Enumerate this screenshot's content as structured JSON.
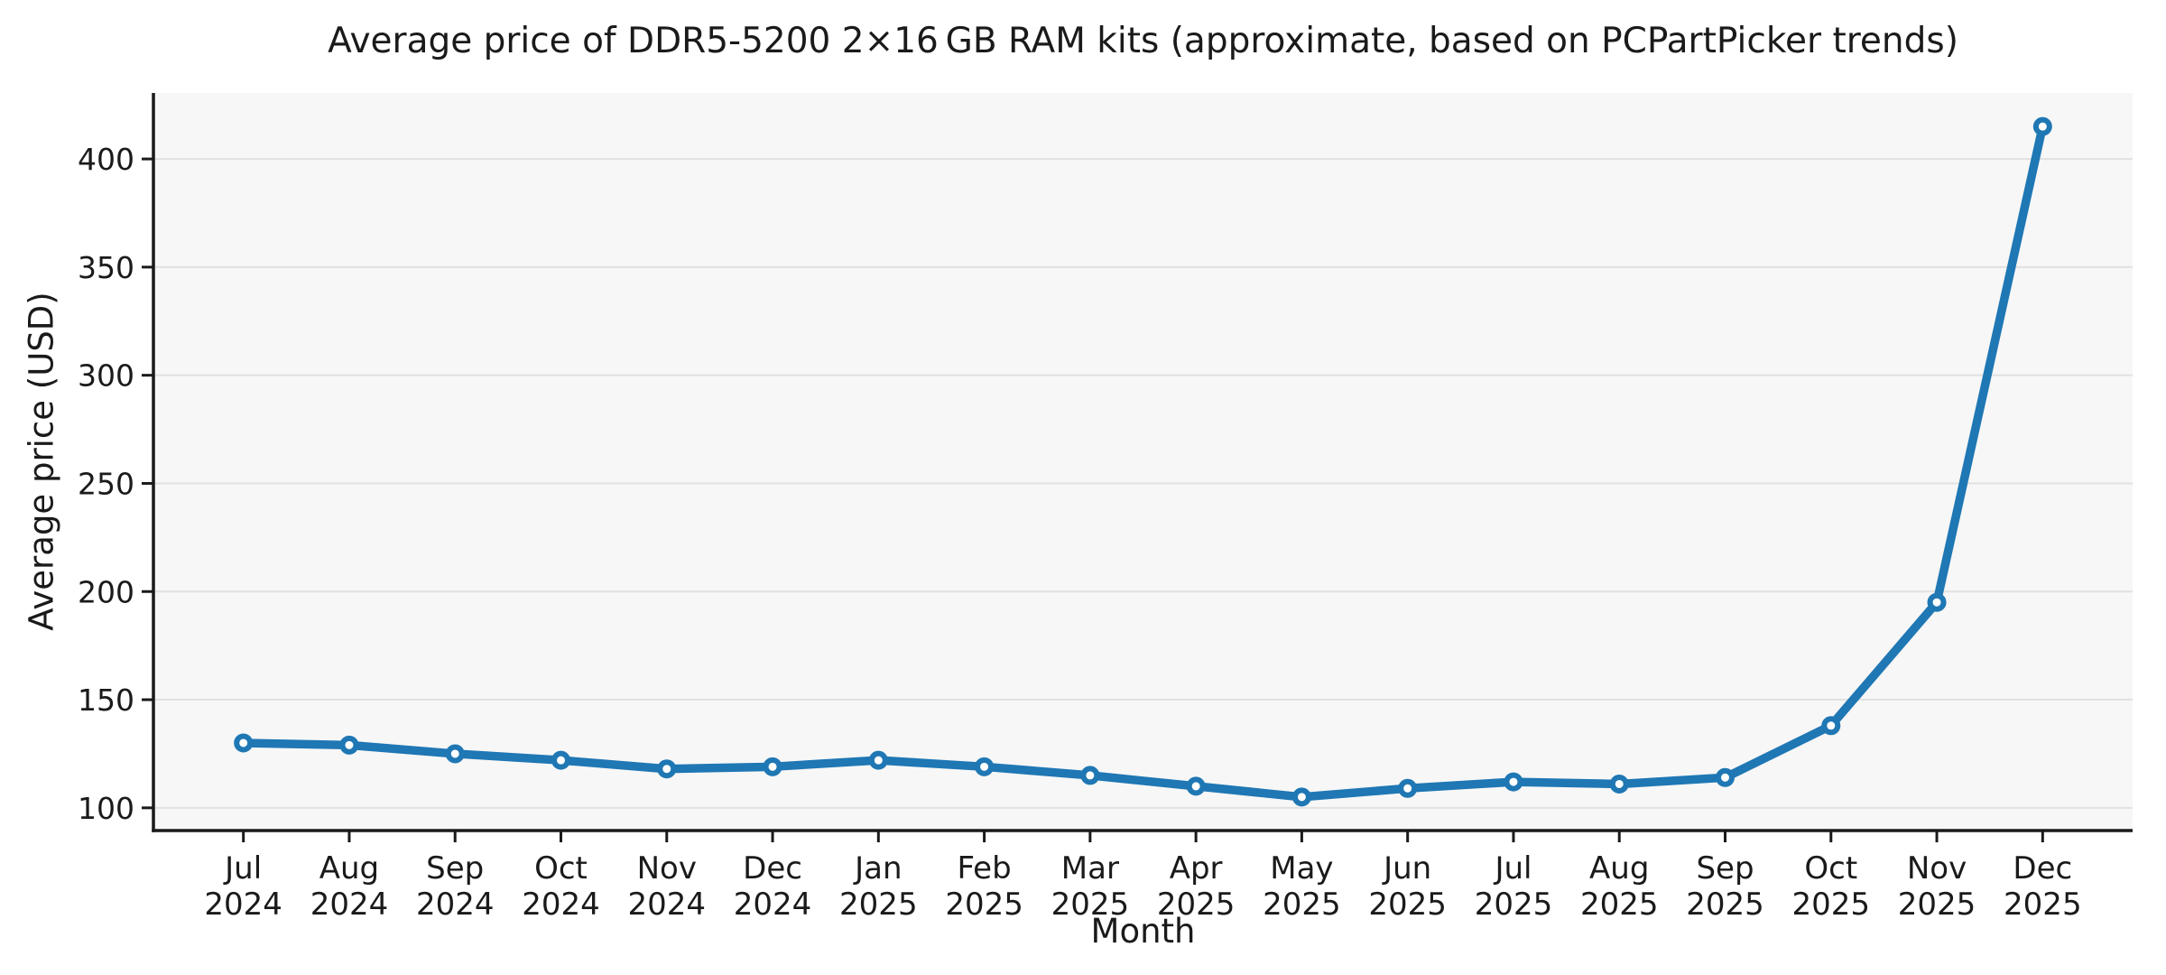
{
  "chart_data": {
    "type": "line",
    "title": "Average price of DDR5-5200 2×16 GB RAM kits (approximate, based on PCPartPicker trends)",
    "xlabel": "Month",
    "ylabel": "Average price (USD)",
    "categories": [
      "Jul 2024",
      "Aug 2024",
      "Sep 2024",
      "Oct 2024",
      "Nov 2024",
      "Dec 2024",
      "Jan 2025",
      "Feb 2025",
      "Mar 2025",
      "Apr 2025",
      "May 2025",
      "Jun 2025",
      "Jul 2025",
      "Aug 2025",
      "Sep 2025",
      "Oct 2025",
      "Nov 2025",
      "Dec 2025"
    ],
    "values": [
      130,
      129,
      125,
      122,
      118,
      119,
      122,
      119,
      115,
      110,
      105,
      109,
      112,
      111,
      114,
      138,
      195,
      415
    ],
    "yticks": [
      100,
      150,
      200,
      250,
      300,
      350,
      400
    ],
    "ylim": [
      89.5,
      430.5
    ],
    "grid": true,
    "legend": "none",
    "line_color": "#1f77b4",
    "marker_style": "circle-white-fill-blue-edge",
    "plot_background": "#f7f7f7",
    "grid_color": "#e1e1e1",
    "axis_color": "#1a1a1a"
  }
}
